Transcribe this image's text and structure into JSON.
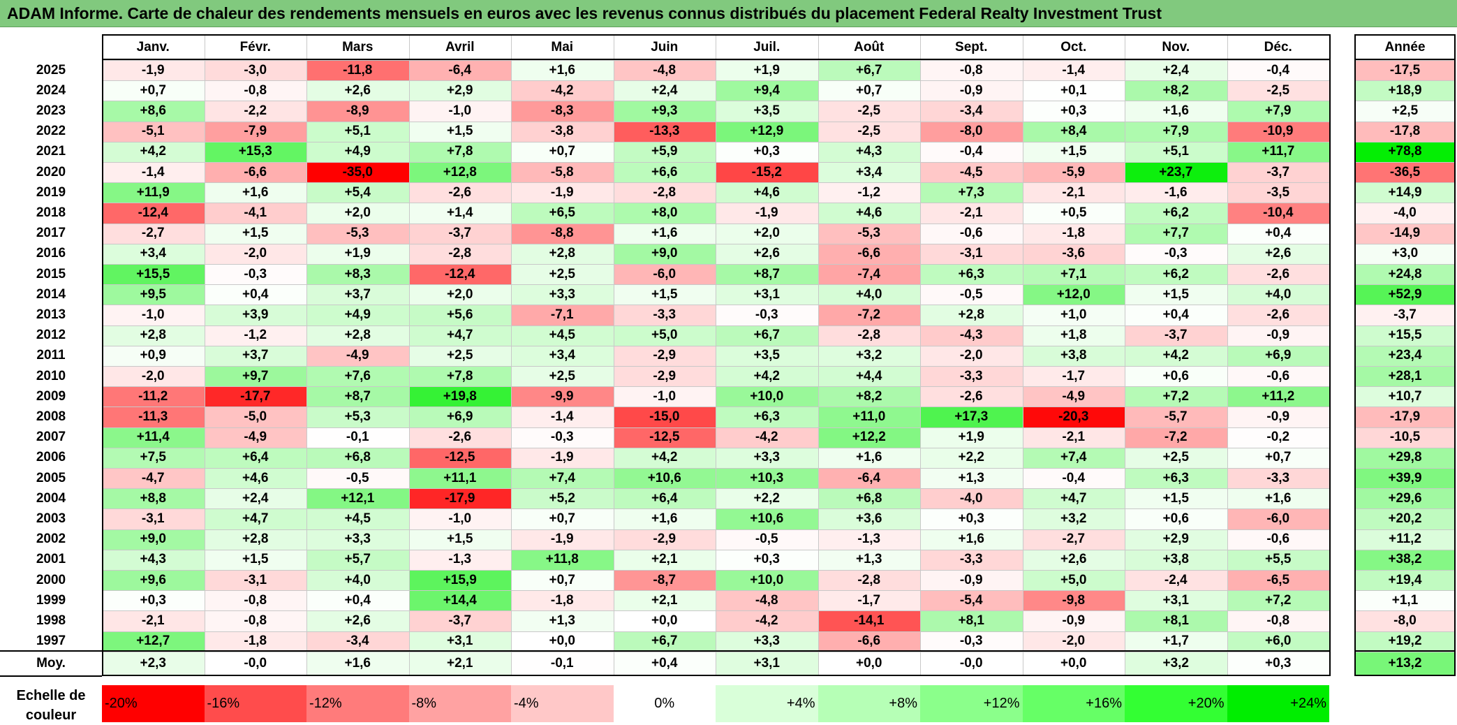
{
  "title": "ADAM Informe. Carte de chaleur des rendements mensuels en euros avec les revenus connus distribués du placement Federal Realty Investment Trust",
  "chart_data": {
    "type": "heatmap",
    "columns": [
      "Janv.",
      "Févr.",
      "Mars",
      "Avril",
      "Mai",
      "Juin",
      "Juil.",
      "Août",
      "Sept.",
      "Oct.",
      "Nov.",
      "Déc."
    ],
    "year_column": "Année",
    "rows": [
      {
        "year": "2025",
        "values": [
          "-1,9",
          "-3,0",
          "-11,8",
          "-6,4",
          "+1,6",
          "-4,8",
          "+1,9",
          "+6,7",
          "-0,8",
          "-1,4",
          "+2,4",
          "-0,4"
        ],
        "annual": "-17,5"
      },
      {
        "year": "2024",
        "values": [
          "+0,7",
          "-0,8",
          "+2,6",
          "+2,9",
          "-4,2",
          "+2,4",
          "+9,4",
          "+0,7",
          "-0,9",
          "+0,1",
          "+8,2",
          "-2,5"
        ],
        "annual": "+18,9"
      },
      {
        "year": "2023",
        "values": [
          "+8,6",
          "-2,2",
          "-8,9",
          "-1,0",
          "-8,3",
          "+9,3",
          "+3,5",
          "-2,5",
          "-3,4",
          "+0,3",
          "+1,6",
          "+7,9"
        ],
        "annual": "+2,5"
      },
      {
        "year": "2022",
        "values": [
          "-5,1",
          "-7,9",
          "+5,1",
          "+1,5",
          "-3,8",
          "-13,3",
          "+12,9",
          "-2,5",
          "-8,0",
          "+8,4",
          "+7,9",
          "-10,9"
        ],
        "annual": "-17,8"
      },
      {
        "year": "2021",
        "values": [
          "+4,2",
          "+15,3",
          "+4,9",
          "+7,8",
          "+0,7",
          "+5,9",
          "+0,3",
          "+4,3",
          "-0,4",
          "+1,5",
          "+5,1",
          "+11,7"
        ],
        "annual": "+78,8"
      },
      {
        "year": "2020",
        "values": [
          "-1,4",
          "-6,6",
          "-35,0",
          "+12,8",
          "-5,8",
          "+6,6",
          "-15,2",
          "+3,4",
          "-4,5",
          "-5,9",
          "+23,7",
          "-3,7"
        ],
        "annual": "-36,5"
      },
      {
        "year": "2019",
        "values": [
          "+11,9",
          "+1,6",
          "+5,4",
          "-2,6",
          "-1,9",
          "-2,8",
          "+4,6",
          "-1,2",
          "+7,3",
          "-2,1",
          "-1,6",
          "-3,5"
        ],
        "annual": "+14,9"
      },
      {
        "year": "2018",
        "values": [
          "-12,4",
          "-4,1",
          "+2,0",
          "+1,4",
          "+6,5",
          "+8,0",
          "-1,9",
          "+4,6",
          "-2,1",
          "+0,5",
          "+6,2",
          "-10,4"
        ],
        "annual": "-4,0"
      },
      {
        "year": "2017",
        "values": [
          "-2,7",
          "+1,5",
          "-5,3",
          "-3,7",
          "-8,8",
          "+1,6",
          "+2,0",
          "-5,3",
          "-0,6",
          "-1,8",
          "+7,7",
          "+0,4"
        ],
        "annual": "-14,9"
      },
      {
        "year": "2016",
        "values": [
          "+3,4",
          "-2,0",
          "+1,9",
          "-2,8",
          "+2,8",
          "+9,0",
          "+2,6",
          "-6,6",
          "-3,1",
          "-3,6",
          "-0,3",
          "+2,6"
        ],
        "annual": "+3,0"
      },
      {
        "year": "2015",
        "values": [
          "+15,5",
          "-0,3",
          "+8,3",
          "-12,4",
          "+2,5",
          "-6,0",
          "+8,7",
          "-7,4",
          "+6,3",
          "+7,1",
          "+6,2",
          "-2,6"
        ],
        "annual": "+24,8"
      },
      {
        "year": "2014",
        "values": [
          "+9,5",
          "+0,4",
          "+3,7",
          "+2,0",
          "+3,3",
          "+1,5",
          "+3,1",
          "+4,0",
          "-0,5",
          "+12,0",
          "+1,5",
          "+4,0"
        ],
        "annual": "+52,9"
      },
      {
        "year": "2013",
        "values": [
          "-1,0",
          "+3,9",
          "+4,9",
          "+5,6",
          "-7,1",
          "-3,3",
          "-0,3",
          "-7,2",
          "+2,8",
          "+1,0",
          "+0,4",
          "-2,6"
        ],
        "annual": "-3,7"
      },
      {
        "year": "2012",
        "values": [
          "+2,8",
          "-1,2",
          "+2,8",
          "+4,7",
          "+4,5",
          "+5,0",
          "+6,7",
          "-2,8",
          "-4,3",
          "+1,8",
          "-3,7",
          "-0,9"
        ],
        "annual": "+15,5"
      },
      {
        "year": "2011",
        "values": [
          "+0,9",
          "+3,7",
          "-4,9",
          "+2,5",
          "+3,4",
          "-2,9",
          "+3,5",
          "+3,2",
          "-2,0",
          "+3,8",
          "+4,2",
          "+6,9"
        ],
        "annual": "+23,4"
      },
      {
        "year": "2010",
        "values": [
          "-2,0",
          "+9,7",
          "+7,6",
          "+7,8",
          "+2,5",
          "-2,9",
          "+4,2",
          "+4,4",
          "-3,3",
          "-1,7",
          "+0,6",
          "-0,6"
        ],
        "annual": "+28,1"
      },
      {
        "year": "2009",
        "values": [
          "-11,2",
          "-17,7",
          "+8,7",
          "+19,8",
          "-9,9",
          "-1,0",
          "+10,0",
          "+8,2",
          "-2,6",
          "-4,9",
          "+7,2",
          "+11,2"
        ],
        "annual": "+10,7"
      },
      {
        "year": "2008",
        "values": [
          "-11,3",
          "-5,0",
          "+5,3",
          "+6,9",
          "-1,4",
          "-15,0",
          "+6,3",
          "+11,0",
          "+17,3",
          "-20,3",
          "-5,7",
          "-0,9"
        ],
        "annual": "-17,9"
      },
      {
        "year": "2007",
        "values": [
          "+11,4",
          "-4,9",
          "-0,1",
          "-2,6",
          "-0,3",
          "-12,5",
          "-4,2",
          "+12,2",
          "+1,9",
          "-2,1",
          "-7,2",
          "-0,2"
        ],
        "annual": "-10,5"
      },
      {
        "year": "2006",
        "values": [
          "+7,5",
          "+6,4",
          "+6,8",
          "-12,5",
          "-1,9",
          "+4,2",
          "+3,3",
          "+1,6",
          "+2,2",
          "+7,4",
          "+2,5",
          "+0,7"
        ],
        "annual": "+29,8"
      },
      {
        "year": "2005",
        "values": [
          "-4,7",
          "+4,6",
          "-0,5",
          "+11,1",
          "+7,4",
          "+10,6",
          "+10,3",
          "-6,4",
          "+1,3",
          "-0,4",
          "+6,3",
          "-3,3"
        ],
        "annual": "+39,9"
      },
      {
        "year": "2004",
        "values": [
          "+8,8",
          "+2,4",
          "+12,1",
          "-17,9",
          "+5,2",
          "+6,4",
          "+2,2",
          "+6,8",
          "-4,0",
          "+4,7",
          "+1,5",
          "+1,6"
        ],
        "annual": "+29,6"
      },
      {
        "year": "2003",
        "values": [
          "-3,1",
          "+4,7",
          "+4,5",
          "-1,0",
          "+0,7",
          "+1,6",
          "+10,6",
          "+3,6",
          "+0,3",
          "+3,2",
          "+0,6",
          "-6,0"
        ],
        "annual": "+20,2"
      },
      {
        "year": "2002",
        "values": [
          "+9,0",
          "+2,8",
          "+3,3",
          "+1,5",
          "-1,9",
          "-2,9",
          "-0,5",
          "-1,3",
          "+1,6",
          "-2,7",
          "+2,9",
          "-0,6"
        ],
        "annual": "+11,2"
      },
      {
        "year": "2001",
        "values": [
          "+4,3",
          "+1,5",
          "+5,7",
          "-1,3",
          "+11,8",
          "+2,1",
          "+0,3",
          "+1,3",
          "-3,3",
          "+2,6",
          "+3,8",
          "+5,5"
        ],
        "annual": "+38,2"
      },
      {
        "year": "2000",
        "values": [
          "+9,6",
          "-3,1",
          "+4,0",
          "+15,9",
          "+0,7",
          "-8,7",
          "+10,0",
          "-2,8",
          "-0,9",
          "+5,0",
          "-2,4",
          "-6,5"
        ],
        "annual": "+19,4"
      },
      {
        "year": "1999",
        "values": [
          "+0,3",
          "-0,8",
          "+0,4",
          "+14,4",
          "-1,8",
          "+2,1",
          "-4,8",
          "-1,7",
          "-5,4",
          "-9,8",
          "+3,1",
          "+7,2"
        ],
        "annual": "+1,1"
      },
      {
        "year": "1998",
        "values": [
          "-2,1",
          "-0,8",
          "+2,6",
          "-3,7",
          "+1,3",
          "+0,0",
          "-4,2",
          "-14,1",
          "+8,1",
          "-0,9",
          "+8,1",
          "-0,8"
        ],
        "annual": "-8,0"
      },
      {
        "year": "1997",
        "values": [
          "+12,7",
          "-1,8",
          "-3,4",
          "+3,1",
          "+0,0",
          "+6,7",
          "+3,3",
          "-6,6",
          "-0,3",
          "-2,0",
          "+1,7",
          "+6,0"
        ],
        "annual": "+19,2"
      }
    ],
    "average": {
      "label": "Moy.",
      "values": [
        "+2,3",
        "-0,0",
        "+1,6",
        "+2,1",
        "-0,1",
        "+0,4",
        "+3,1",
        "+0,0",
        "-0,0",
        "+0,0",
        "+3,2",
        "+0,3"
      ],
      "annual": "+13,2"
    },
    "color_scale": {
      "label": "Echelle de couleur",
      "stops": [
        "-20%",
        "-16%",
        "-12%",
        "-8%",
        "-4%",
        "0%",
        "+4%",
        "+8%",
        "+12%",
        "+16%",
        "+20%",
        "+24%"
      ],
      "stop_values": [
        -20,
        -16,
        -12,
        -8,
        -4,
        0,
        4,
        8,
        12,
        16,
        20,
        24
      ],
      "colors": [
        "#ff0000",
        "#ff4c4c",
        "#ff7b7b",
        "#ffa2a2",
        "#ffc8c8",
        "#ffffff",
        "#d9ffd9",
        "#b6ffb6",
        "#8bff8b",
        "#66ff66",
        "#33ff33",
        "#00ee00"
      ],
      "negative_color": "#ff0000",
      "positive_color": "#00ee00"
    }
  }
}
